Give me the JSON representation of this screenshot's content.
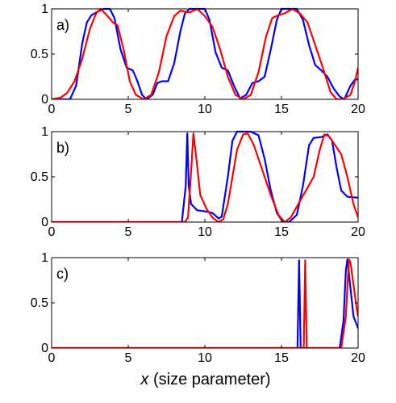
{
  "figure": {
    "xlabel_var": "x",
    "xlabel_rest": " (size parameter)"
  },
  "colors": {
    "series_a": "#0000ff",
    "series_b": "#ff0000",
    "axes": "#000000"
  },
  "chart_data": [
    {
      "type": "line",
      "panel_label": "a)",
      "xlim": [
        0,
        20
      ],
      "ylim": [
        0,
        1
      ],
      "xticks": [
        "0",
        "5",
        "10",
        "15",
        "20"
      ],
      "yticks": [
        "0",
        "0.5",
        "1"
      ],
      "grid": false,
      "series": [
        {
          "color": "#0000ff",
          "points": [
            [
              0,
              0
            ],
            [
              1.2,
              0
            ],
            [
              1.6,
              0.15
            ],
            [
              2.0,
              0.62
            ],
            [
              2.3,
              0.85
            ],
            [
              2.6,
              0.93
            ],
            [
              3.0,
              0.97
            ],
            [
              3.4,
              1.0
            ],
            [
              3.8,
              1.0
            ],
            [
              4.1,
              0.9
            ],
            [
              4.5,
              0.55
            ],
            [
              4.9,
              0.35
            ],
            [
              5.3,
              0.32
            ],
            [
              5.6,
              0.2
            ],
            [
              5.9,
              0.05
            ],
            [
              6.2,
              0.0
            ],
            [
              6.6,
              0.05
            ],
            [
              6.9,
              0.18
            ],
            [
              7.2,
              0.2
            ],
            [
              7.6,
              0.2
            ],
            [
              8.0,
              0.4
            ],
            [
              8.4,
              0.75
            ],
            [
              8.7,
              0.95
            ],
            [
              9.0,
              1.0
            ],
            [
              9.6,
              1.0
            ],
            [
              10.0,
              1.0
            ],
            [
              10.3,
              0.88
            ],
            [
              10.7,
              0.52
            ],
            [
              11.1,
              0.35
            ],
            [
              11.5,
              0.32
            ],
            [
              11.9,
              0.15
            ],
            [
              12.3,
              0.01
            ],
            [
              12.7,
              0.05
            ],
            [
              13.1,
              0.18
            ],
            [
              13.5,
              0.2
            ],
            [
              13.9,
              0.25
            ],
            [
              14.3,
              0.55
            ],
            [
              14.7,
              0.88
            ],
            [
              15.0,
              1.0
            ],
            [
              15.5,
              1.0
            ],
            [
              16.0,
              1.0
            ],
            [
              16.4,
              0.88
            ],
            [
              16.8,
              0.6
            ],
            [
              17.2,
              0.38
            ],
            [
              17.6,
              0.32
            ],
            [
              18.0,
              0.25
            ],
            [
              18.4,
              0.12
            ],
            [
              18.8,
              0.03
            ],
            [
              19.1,
              0.0
            ],
            [
              19.5,
              0.15
            ],
            [
              19.8,
              0.22
            ],
            [
              20.0,
              0.22
            ]
          ]
        },
        {
          "color": "#ff0000",
          "points": [
            [
              0,
              0
            ],
            [
              0.6,
              0.02
            ],
            [
              1.0,
              0.07
            ],
            [
              1.5,
              0.2
            ],
            [
              2.0,
              0.45
            ],
            [
              2.5,
              0.78
            ],
            [
              2.9,
              0.95
            ],
            [
              3.2,
              1.0
            ],
            [
              3.6,
              0.93
            ],
            [
              4.0,
              0.85
            ],
            [
              4.3,
              0.82
            ],
            [
              4.7,
              0.55
            ],
            [
              5.1,
              0.2
            ],
            [
              5.5,
              0.05
            ],
            [
              6.0,
              0.0
            ],
            [
              6.5,
              0.05
            ],
            [
              7.0,
              0.3
            ],
            [
              7.5,
              0.7
            ],
            [
              8.0,
              0.92
            ],
            [
              8.4,
              0.98
            ],
            [
              9.0,
              0.96
            ],
            [
              9.5,
              1.0
            ],
            [
              10.0,
              0.92
            ],
            [
              10.5,
              0.8
            ],
            [
              11.0,
              0.55
            ],
            [
              11.5,
              0.25
            ],
            [
              12.0,
              0.05
            ],
            [
              12.5,
              0.0
            ],
            [
              13.0,
              0.05
            ],
            [
              13.5,
              0.3
            ],
            [
              14.0,
              0.7
            ],
            [
              14.4,
              0.9
            ],
            [
              14.8,
              0.93
            ],
            [
              15.2,
              0.95
            ],
            [
              15.7,
              1.0
            ],
            [
              16.2,
              0.95
            ],
            [
              16.7,
              0.85
            ],
            [
              17.2,
              0.6
            ],
            [
              17.7,
              0.35
            ],
            [
              18.2,
              0.08
            ],
            [
              18.6,
              0.0
            ],
            [
              19.0,
              0.0
            ],
            [
              19.5,
              0.05
            ],
            [
              19.8,
              0.2
            ],
            [
              20.0,
              0.35
            ]
          ]
        }
      ]
    },
    {
      "type": "line",
      "panel_label": "b)",
      "xlim": [
        0,
        20
      ],
      "ylim": [
        0,
        1
      ],
      "xticks": [
        "0",
        "5",
        "10",
        "15",
        "20"
      ],
      "yticks": [
        "0",
        "0.5",
        "1"
      ],
      "grid": false,
      "series": [
        {
          "color": "#0000ff",
          "points": [
            [
              0,
              0
            ],
            [
              8.5,
              0
            ],
            [
              8.75,
              0.4
            ],
            [
              8.85,
              0.98
            ],
            [
              8.95,
              0.4
            ],
            [
              9.1,
              0.2
            ],
            [
              9.5,
              0.13
            ],
            [
              10.0,
              0.12
            ],
            [
              10.5,
              0.1
            ],
            [
              10.9,
              0.04
            ],
            [
              11.1,
              0.06
            ],
            [
              11.5,
              0.5
            ],
            [
              11.8,
              0.9
            ],
            [
              12.1,
              1.0
            ],
            [
              13.0,
              1.0
            ],
            [
              13.5,
              0.96
            ],
            [
              13.9,
              0.7
            ],
            [
              14.3,
              0.35
            ],
            [
              14.7,
              0.1
            ],
            [
              15.1,
              0.0
            ],
            [
              15.5,
              0.0
            ],
            [
              16.0,
              0.08
            ],
            [
              16.4,
              0.4
            ],
            [
              16.8,
              0.85
            ],
            [
              17.1,
              0.93
            ],
            [
              17.6,
              0.94
            ],
            [
              18.0,
              0.97
            ],
            [
              18.3,
              0.9
            ],
            [
              18.6,
              0.6
            ],
            [
              18.9,
              0.35
            ],
            [
              19.3,
              0.28
            ],
            [
              20.0,
              0.27
            ]
          ]
        },
        {
          "color": "#ff0000",
          "points": [
            [
              0,
              0
            ],
            [
              8.7,
              0
            ],
            [
              8.9,
              0.05
            ],
            [
              9.1,
              0.55
            ],
            [
              9.25,
              0.98
            ],
            [
              9.45,
              0.7
            ],
            [
              9.7,
              0.3
            ],
            [
              10.1,
              0.15
            ],
            [
              10.5,
              0.05
            ],
            [
              10.9,
              0.0
            ],
            [
              11.2,
              0.03
            ],
            [
              11.5,
              0.2
            ],
            [
              11.8,
              0.5
            ],
            [
              12.1,
              0.8
            ],
            [
              12.5,
              0.97
            ],
            [
              12.8,
              0.98
            ],
            [
              13.2,
              0.85
            ],
            [
              13.7,
              0.6
            ],
            [
              14.3,
              0.3
            ],
            [
              14.8,
              0.08
            ],
            [
              15.2,
              0.0
            ],
            [
              15.6,
              0.05
            ],
            [
              16.1,
              0.2
            ],
            [
              16.6,
              0.35
            ],
            [
              17.1,
              0.5
            ],
            [
              17.5,
              0.8
            ],
            [
              17.8,
              0.97
            ],
            [
              18.1,
              0.95
            ],
            [
              18.5,
              0.85
            ],
            [
              18.9,
              0.75
            ],
            [
              19.3,
              0.5
            ],
            [
              19.7,
              0.2
            ],
            [
              20.0,
              0.05
            ]
          ]
        }
      ]
    },
    {
      "type": "line",
      "panel_label": "c)",
      "xlim": [
        0,
        20
      ],
      "ylim": [
        0,
        1
      ],
      "xticks": [
        "0",
        "5",
        "10",
        "15",
        "20"
      ],
      "yticks": [
        "0",
        "0.5",
        "1"
      ],
      "grid": false,
      "series": [
        {
          "color": "#0000ff",
          "points": [
            [
              0,
              0
            ],
            [
              16.05,
              0
            ],
            [
              16.15,
              0.97
            ],
            [
              16.25,
              0
            ],
            [
              18.8,
              0
            ],
            [
              19.05,
              0.3
            ],
            [
              19.2,
              0.85
            ],
            [
              19.3,
              0.98
            ],
            [
              19.45,
              0.75
            ],
            [
              19.7,
              0.35
            ],
            [
              20.0,
              0.22
            ]
          ]
        },
        {
          "color": "#ff0000",
          "points": [
            [
              0,
              0
            ],
            [
              16.45,
              0
            ],
            [
              16.55,
              0.97
            ],
            [
              16.65,
              0
            ],
            [
              18.9,
              0
            ],
            [
              19.2,
              0.35
            ],
            [
              19.4,
              0.98
            ],
            [
              19.5,
              0.95
            ],
            [
              19.7,
              0.7
            ],
            [
              19.9,
              0.45
            ],
            [
              20.0,
              0.35
            ]
          ]
        }
      ]
    }
  ]
}
